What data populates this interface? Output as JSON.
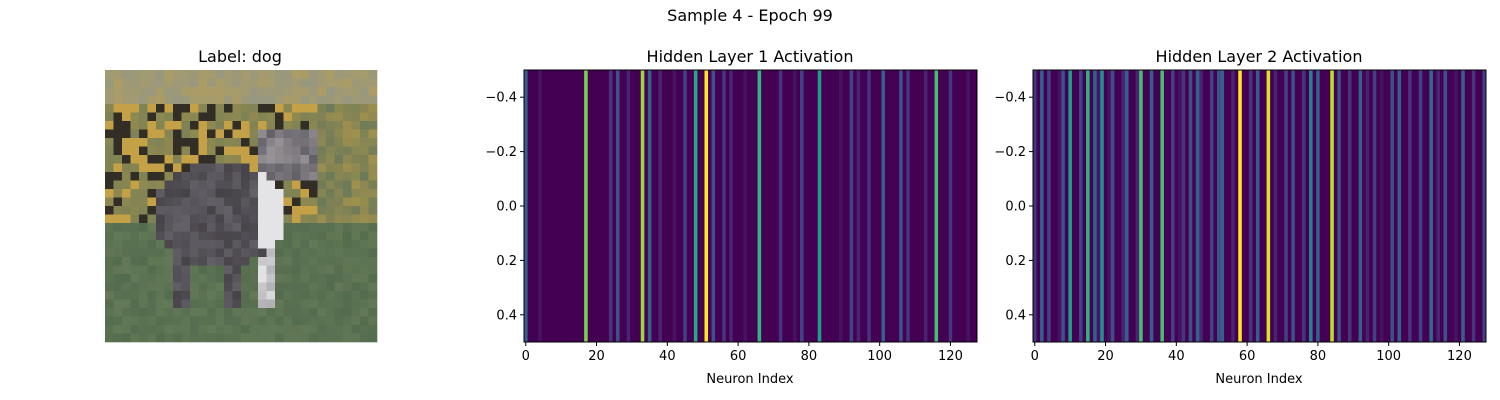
{
  "figure": {
    "suptitle": "Sample 4 - Epoch 99"
  },
  "colormap": [
    "#440154",
    "#482878",
    "#3e4989",
    "#31688e",
    "#26828e",
    "#1f9e89",
    "#35b779",
    "#6ece58",
    "#b5de2b",
    "#fde725"
  ],
  "chart_data": [
    {
      "type": "image",
      "title": "Label: dog",
      "axis": "off",
      "content": "pixelated photo of a dog standing on grass"
    },
    {
      "type": "heatmap",
      "title": "Hidden Layer 1 Activation",
      "xlabel": "Neuron Index",
      "ylabel": "",
      "xlim": [
        -0.5,
        127.5
      ],
      "ylim": [
        0.5,
        -0.5
      ],
      "xticks": [
        0,
        20,
        40,
        60,
        80,
        100,
        120
      ],
      "yticks": [
        -0.4,
        -0.2,
        0.0,
        0.2,
        0.4
      ],
      "ytick_labels": [
        "−0.4",
        "−0.2",
        "0.0",
        "0.2",
        "0.4"
      ],
      "values": [
        0.3,
        0.0,
        0.0,
        0.0,
        0.05,
        0.0,
        0.0,
        0.0,
        0.0,
        0.0,
        0.0,
        0.0,
        0.0,
        0.0,
        0.0,
        0.0,
        0.0,
        0.8,
        0.0,
        0.0,
        0.0,
        0.0,
        0.0,
        0.0,
        0.15,
        0.0,
        0.25,
        0.0,
        0.0,
        0.1,
        0.0,
        0.0,
        0.0,
        0.85,
        0.0,
        0.3,
        0.0,
        0.0,
        0.1,
        0.0,
        0.0,
        0.0,
        0.05,
        0.0,
        0.0,
        0.2,
        0.0,
        0.0,
        0.6,
        0.0,
        0.0,
        1.0,
        0.0,
        0.25,
        0.0,
        0.0,
        0.15,
        0.0,
        0.1,
        0.0,
        0.0,
        0.0,
        0.05,
        0.0,
        0.0,
        0.0,
        0.65,
        0.0,
        0.0,
        0.0,
        0.0,
        0.0,
        0.15,
        0.0,
        0.0,
        0.0,
        0.05,
        0.0,
        0.2,
        0.0,
        0.0,
        0.0,
        0.0,
        0.55,
        0.0,
        0.0,
        0.0,
        0.0,
        0.0,
        0.05,
        0.0,
        0.0,
        0.2,
        0.0,
        0.1,
        0.0,
        0.0,
        0.15,
        0.0,
        0.0,
        0.0,
        0.3,
        0.0,
        0.0,
        0.0,
        0.0,
        0.25,
        0.0,
        0.15,
        0.0,
        0.0,
        0.0,
        0.0,
        0.1,
        0.0,
        0.0,
        0.7,
        0.0,
        0.0,
        0.0,
        0.15,
        0.0,
        0.0,
        0.0,
        0.0,
        0.05,
        0.0,
        0.0
      ]
    },
    {
      "type": "heatmap",
      "title": "Hidden Layer 2 Activation",
      "xlabel": "Neuron Index",
      "ylabel": "",
      "xlim": [
        -0.5,
        127.5
      ],
      "ylim": [
        0.5,
        -0.5
      ],
      "xticks": [
        0,
        20,
        40,
        60,
        80,
        100,
        120
      ],
      "yticks": [
        -0.4,
        -0.2,
        0.0,
        0.2,
        0.4
      ],
      "ytick_labels": [
        "−0.4",
        "−0.2",
        "0.0",
        "0.2",
        "0.4"
      ],
      "values": [
        0.15,
        0.0,
        0.3,
        0.0,
        0.2,
        0.0,
        0.0,
        0.05,
        0.25,
        0.0,
        0.55,
        0.0,
        0.0,
        0.2,
        0.0,
        0.65,
        0.0,
        0.3,
        0.05,
        0.5,
        0.0,
        0.05,
        0.25,
        0.0,
        0.0,
        0.1,
        0.3,
        0.0,
        0.0,
        0.1,
        0.7,
        0.0,
        0.0,
        0.3,
        0.0,
        0.0,
        0.7,
        0.0,
        0.0,
        0.2,
        0.0,
        0.05,
        0.15,
        0.0,
        0.25,
        0.0,
        0.3,
        0.1,
        0.0,
        0.0,
        0.2,
        0.0,
        0.25,
        0.3,
        0.0,
        0.0,
        0.1,
        0.0,
        1.0,
        0.0,
        0.0,
        0.15,
        0.0,
        0.3,
        0.0,
        0.0,
        0.95,
        0.0,
        0.1,
        0.0,
        0.0,
        0.2,
        0.0,
        0.25,
        0.0,
        0.0,
        0.15,
        0.0,
        0.45,
        0.0,
        0.3,
        0.0,
        0.0,
        0.0,
        0.9,
        0.0,
        0.25,
        0.0,
        0.0,
        0.15,
        0.0,
        0.0,
        0.3,
        0.0,
        0.1,
        0.0,
        0.2,
        0.0,
        0.05,
        0.0,
        0.0,
        0.25,
        0.0,
        0.3,
        0.0,
        0.0,
        0.15,
        0.0,
        0.0,
        0.2,
        0.0,
        0.0,
        0.35,
        0.0,
        0.1,
        0.0,
        0.25,
        0.0,
        0.0,
        0.05,
        0.0,
        0.3,
        0.0,
        0.0,
        0.15,
        0.0,
        0.0,
        0.2
      ]
    }
  ]
}
